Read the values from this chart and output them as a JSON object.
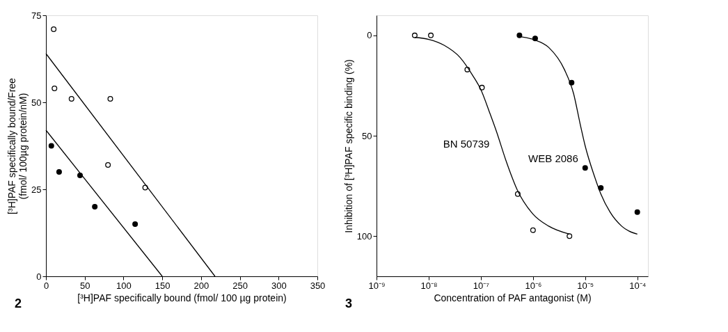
{
  "chart_data": [
    {
      "type": "scatter",
      "xlabel": "[³H]PAF specifically bound (fmol/ 100  µg protein)",
      "ylabel": "[³H]PAF specifically bound/Free\n(fmol/ 100µg protein/nM)",
      "xlim": [
        0,
        350
      ],
      "xticks": [
        0,
        50,
        100,
        150,
        200,
        250,
        300,
        350
      ],
      "ylim": [
        0,
        75
      ],
      "yticks": [
        0,
        25,
        50,
        75
      ],
      "grid": false,
      "annotations": [
        "2"
      ],
      "series": [
        {
          "color": "#ffffff",
          "marker": "circle",
          "x": [
            10,
            11,
            33,
            83,
            80,
            128
          ],
          "values": [
            71,
            54,
            51,
            51,
            32,
            25.5
          ]
        },
        {
          "color": "#000000",
          "marker": "circle",
          "x": [
            7,
            17,
            44,
            63,
            115
          ],
          "values": [
            37.5,
            30,
            29,
            20,
            15
          ]
        },
        {
          "type": "line",
          "marker": "none",
          "color": "#000000",
          "x": [
            0,
            218
          ],
          "values": [
            64,
            0
          ]
        },
        {
          "type": "line",
          "marker": "none",
          "color": "#000000",
          "x": [
            0,
            150
          ],
          "values": [
            42,
            0
          ]
        }
      ]
    },
    {
      "type": "scatter",
      "xlabel": "Concentration of PAF antagonist (M)",
      "ylabel": "Inhibition of [³H]PAF specific binding (%)",
      "log": "x",
      "xlim": [
        1e-09,
        0.00016
      ],
      "xticks": [
        {
          "value": 1e-09,
          "label": "10⁻⁹"
        },
        {
          "value": 1e-08,
          "label": "10⁻⁸"
        },
        {
          "value": 1e-07,
          "label": "10⁻⁷"
        },
        {
          "value": 1e-06,
          "label": "10⁻⁶"
        },
        {
          "value": 1e-05,
          "label": "10⁻⁵"
        },
        {
          "value": 0.0001,
          "label": "10⁻⁴"
        }
      ],
      "ylim": [
        120,
        -10
      ],
      "yticks": [
        0,
        50,
        100
      ],
      "grid": false,
      "annotations": [
        "3"
      ],
      "series": [
        {
          "color": "#ffffff",
          "marker": "circle",
          "x": [
            5.4e-09,
            1.1e-08,
            5.5e-08,
            1.05e-07,
            5.1e-07,
            1e-06,
            5e-06
          ],
          "values": [
            0,
            0,
            17,
            26,
            79,
            97,
            100
          ]
        },
        {
          "color": "#000000",
          "marker": "circle",
          "x": [
            5.5e-07,
            1.1e-06,
            5.5e-06,
            1e-05,
            2e-05,
            0.0001
          ],
          "values": [
            0,
            1.5,
            23.5,
            66,
            76,
            88
          ]
        },
        {
          "type": "line",
          "name": "BN 50739",
          "marker": "none",
          "color": "#000000",
          "x": [
            5.4e-09,
            1e-08,
            2e-08,
            4e-08,
            7e-08,
            1e-07,
            1.5e-07,
            2e-07,
            3e-07,
            5e-07,
            1e-06,
            2e-06,
            5e-06
          ],
          "values": [
            1,
            2,
            5,
            11,
            20,
            27,
            39,
            48,
            62,
            77,
            89,
            95,
            99
          ]
        },
        {
          "type": "line",
          "name": "WEB 2086",
          "marker": "none",
          "color": "#000000",
          "x": [
            5.5e-07,
            1e-06,
            2e-06,
            4e-06,
            6e-06,
            8e-06,
            1e-05,
            1.5e-05,
            2e-05,
            3e-05,
            5e-05,
            0.0001
          ],
          "values": [
            0.5,
            2,
            6,
            17,
            29,
            44,
            55,
            70,
            79,
            88,
            95,
            99
          ]
        }
      ]
    }
  ]
}
